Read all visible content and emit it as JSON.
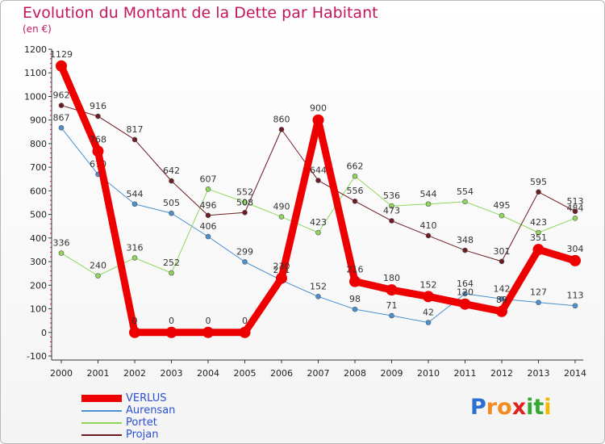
{
  "header": {
    "title": "Evolution du Montant de la Dette par Habitant",
    "subtitle": "(en €)"
  },
  "logo": {
    "text": "Proxiti",
    "letters": [
      {
        "ch": "P",
        "color": "#2b6fd1"
      },
      {
        "ch": "r",
        "color": "#f28c1e"
      },
      {
        "ch": "o",
        "color": "#f28c1e"
      },
      {
        "ch": "x",
        "color": "#e0201c"
      },
      {
        "ch": "i",
        "color": "#36a835"
      },
      {
        "ch": "t",
        "color": "#36a835"
      },
      {
        "ch": "i",
        "color": "#f2b800"
      }
    ]
  },
  "chart_data": {
    "type": "line",
    "title": "Evolution du Montant de la Dette par Habitant",
    "subtitle": "(en €)",
    "x": [
      "2000",
      "2001",
      "2002",
      "2003",
      "2004",
      "2005",
      "2006",
      "2007",
      "2008",
      "2009",
      "2010",
      "2011",
      "2012",
      "2013",
      "2014"
    ],
    "ylim": [
      -100,
      1200
    ],
    "yticks": [
      -100,
      0,
      100,
      200,
      300,
      400,
      500,
      600,
      700,
      800,
      900,
      1000,
      1100,
      1200
    ],
    "grid": false,
    "legend_position": "bottom-left",
    "series": [
      {
        "name": "Aurensan",
        "color": "#4a90cf",
        "values": [
          867,
          670,
          544,
          505,
          406,
          299,
          221,
          152,
          98,
          71,
          42,
          164,
          142,
          127,
          113
        ],
        "labels": [
          "867",
          "670",
          "544",
          "505",
          "406",
          "299",
          "221",
          "152",
          "98",
          "71",
          "42",
          "164",
          "142",
          "127",
          "113"
        ]
      },
      {
        "name": "Portet",
        "color": "#8ed65a",
        "values": [
          336,
          240,
          316,
          252,
          607,
          552,
          490,
          423,
          662,
          536,
          544,
          554,
          495,
          423,
          484
        ],
        "labels": [
          "336",
          "240",
          "316",
          "252",
          "607",
          "552",
          "490",
          "423",
          "662",
          "536",
          "544",
          "554",
          "495",
          "423",
          "484"
        ]
      },
      {
        "name": "Projan",
        "color": "#6e1a22",
        "values": [
          962,
          916,
          817,
          642,
          496,
          508,
          860,
          644,
          556,
          473,
          410,
          348,
          301,
          595,
          513
        ],
        "labels": [
          "962",
          "916",
          "817",
          "642",
          "496",
          "508",
          "860",
          "644",
          "556",
          "473",
          "410",
          "348",
          "301",
          "595",
          "513"
        ]
      },
      {
        "name": "VERLUS",
        "color": "#ee0000",
        "values": [
          1129,
          768,
          0,
          0,
          0,
          0,
          230,
          900,
          216,
          180,
          152,
          120,
          89,
          351,
          304
        ],
        "labels": [
          "1129",
          "768",
          "0",
          "0",
          "0",
          "0",
          "230",
          "900",
          "216",
          "180",
          "152",
          "120",
          "89",
          "351",
          "304"
        ]
      }
    ],
    "legend_order": [
      "VERLUS",
      "Aurensan",
      "Portet",
      "Projan"
    ]
  }
}
